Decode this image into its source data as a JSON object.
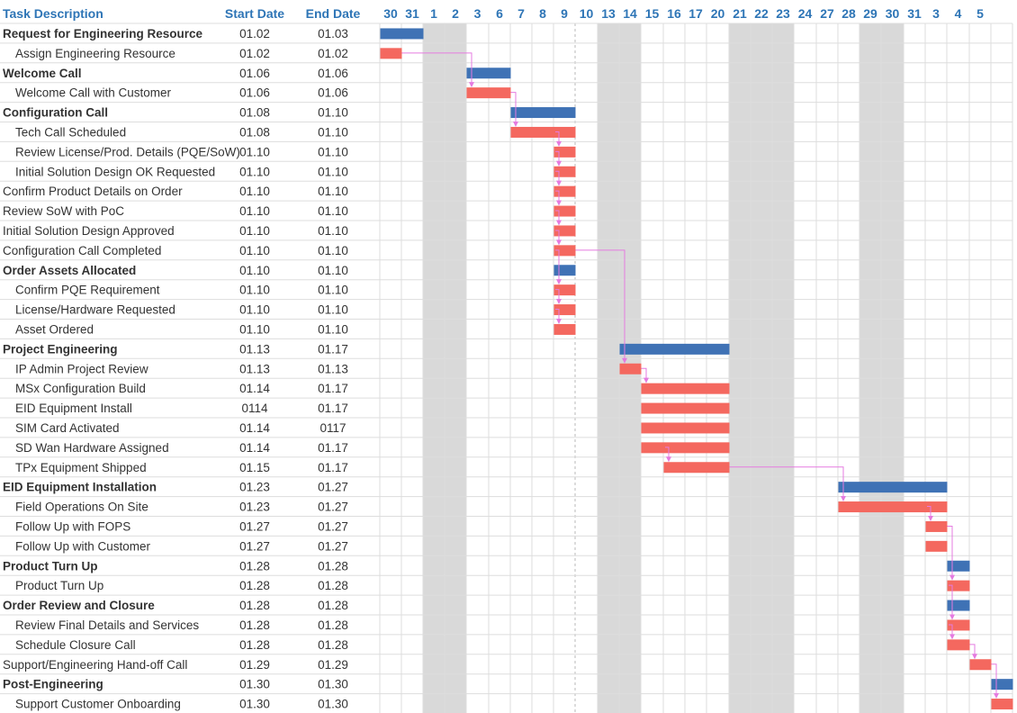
{
  "chart_data": {
    "type": "gantt",
    "columns": {
      "task": "Task Description",
      "start": "Start Date",
      "end": "End Date"
    },
    "colors": {
      "header_text": "#2e75b6",
      "summary_bar": "#3f72b5",
      "task_bar": "#f4685f",
      "weekend_shade": "#d9d9d9",
      "grid": "#dddddd",
      "dependency_line": "#e57be0"
    },
    "days": [
      {
        "label": "30",
        "weekend": false
      },
      {
        "label": "31",
        "weekend": false
      },
      {
        "label": "1",
        "weekend": true
      },
      {
        "label": "2",
        "weekend": true
      },
      {
        "label": "3",
        "weekend": false
      },
      {
        "label": "6",
        "weekend": false
      },
      {
        "label": "7",
        "weekend": false
      },
      {
        "label": "8",
        "weekend": false
      },
      {
        "label": "9",
        "weekend": false
      },
      {
        "label": "10",
        "weekend": false
      },
      {
        "label": "13",
        "weekend": true
      },
      {
        "label": "14",
        "weekend": true
      },
      {
        "label": "15",
        "weekend": false
      },
      {
        "label": "16",
        "weekend": false
      },
      {
        "label": "17",
        "weekend": false
      },
      {
        "label": "20",
        "weekend": false
      },
      {
        "label": "21",
        "weekend": true
      },
      {
        "label": "22",
        "weekend": true
      },
      {
        "label": "23",
        "weekend": true
      },
      {
        "label": "24",
        "weekend": false
      },
      {
        "label": "27",
        "weekend": false
      },
      {
        "label": "28",
        "weekend": false
      },
      {
        "label": "29",
        "weekend": true
      },
      {
        "label": "30",
        "weekend": true
      },
      {
        "label": "31",
        "weekend": false
      },
      {
        "label": "3",
        "weekend": false
      },
      {
        "label": "4",
        "weekend": false
      },
      {
        "label": "5",
        "weekend": false
      }
    ],
    "tasks": [
      {
        "name": "Request for Engineering Resource",
        "start": "01.02",
        "end": "01.03",
        "summary": true,
        "indent": false,
        "bar_start": 0,
        "bar_end": 2
      },
      {
        "name": "Assign Engineering Resource",
        "start": "01.02",
        "end": "01.02",
        "summary": false,
        "indent": true,
        "bar_start": 0,
        "bar_end": 1
      },
      {
        "name": "Welcome Call",
        "start": "01.06",
        "end": "01.06",
        "summary": true,
        "indent": false,
        "bar_start": 4,
        "bar_end": 6
      },
      {
        "name": "Welcome Call with Customer",
        "start": "01.06",
        "end": "01.06",
        "summary": false,
        "indent": true,
        "bar_start": 4,
        "bar_end": 6
      },
      {
        "name": "Configuration Call",
        "start": "01.08",
        "end": "01.10",
        "summary": true,
        "indent": false,
        "bar_start": 6,
        "bar_end": 9
      },
      {
        "name": "Tech Call Scheduled",
        "start": "01.08",
        "end": "01.10",
        "summary": false,
        "indent": true,
        "bar_start": 6,
        "bar_end": 9
      },
      {
        "name": "Review License/Prod. Details (PQE/SoW)",
        "start": "01.10",
        "end": "01.10",
        "summary": false,
        "indent": true,
        "bar_start": 8,
        "bar_end": 9
      },
      {
        "name": "Initial Solution Design OK Requested",
        "start": "01.10",
        "end": "01.10",
        "summary": false,
        "indent": true,
        "bar_start": 8,
        "bar_end": 9
      },
      {
        "name": "Confirm Product Details on Order",
        "start": "01.10",
        "end": "01.10",
        "summary": false,
        "indent": false,
        "bar_start": 8,
        "bar_end": 9
      },
      {
        "name": "Review SoW with PoC",
        "start": "01.10",
        "end": "01.10",
        "summary": false,
        "indent": false,
        "bar_start": 8,
        "bar_end": 9
      },
      {
        "name": "Initial Solution Design Approved",
        "start": "01.10",
        "end": "01.10",
        "summary": false,
        "indent": false,
        "bar_start": 8,
        "bar_end": 9
      },
      {
        "name": "Configuration Call Completed",
        "start": "01.10",
        "end": "01.10",
        "summary": false,
        "indent": false,
        "bar_start": 8,
        "bar_end": 9
      },
      {
        "name": "Order Assets Allocated",
        "start": "01.10",
        "end": "01.10",
        "summary": true,
        "indent": false,
        "bar_start": 8,
        "bar_end": 9
      },
      {
        "name": "Confirm PQE Requirement",
        "start": "01.10",
        "end": "01.10",
        "summary": false,
        "indent": true,
        "bar_start": 8,
        "bar_end": 9
      },
      {
        "name": "License/Hardware Requested",
        "start": "01.10",
        "end": "01.10",
        "summary": false,
        "indent": true,
        "bar_start": 8,
        "bar_end": 9
      },
      {
        "name": "Asset Ordered",
        "start": "01.10",
        "end": "01.10",
        "summary": false,
        "indent": true,
        "bar_start": 8,
        "bar_end": 9
      },
      {
        "name": "Project Engineering",
        "start": "01.13",
        "end": "01.17",
        "summary": true,
        "indent": false,
        "bar_start": 11,
        "bar_end": 16
      },
      {
        "name": "IP Admin Project Review",
        "start": "01.13",
        "end": "01.13",
        "summary": false,
        "indent": true,
        "bar_start": 11,
        "bar_end": 12
      },
      {
        "name": "MSx Configuration Build",
        "start": "01.14",
        "end": "01.17",
        "summary": false,
        "indent": true,
        "bar_start": 12,
        "bar_end": 16
      },
      {
        "name": "EID Equipment Install",
        "start": "0114",
        "end": "01.17",
        "summary": false,
        "indent": true,
        "bar_start": 12,
        "bar_end": 16
      },
      {
        "name": "SIM Card Activated",
        "start": "01.14",
        "end": "0117",
        "summary": false,
        "indent": true,
        "bar_start": 12,
        "bar_end": 16
      },
      {
        "name": "SD Wan Hardware Assigned",
        "start": "01.14",
        "end": "01.17",
        "summary": false,
        "indent": true,
        "bar_start": 12,
        "bar_end": 16
      },
      {
        "name": "TPx Equipment Shipped",
        "start": "01.15",
        "end": "01.17",
        "summary": false,
        "indent": true,
        "bar_start": 13,
        "bar_end": 16
      },
      {
        "name": "EID Equipment Installation",
        "start": "01.23",
        "end": "01.27",
        "summary": true,
        "indent": false,
        "bar_start": 21,
        "bar_end": 26
      },
      {
        "name": "Field Operations On Site",
        "start": "01.23",
        "end": "01.27",
        "summary": false,
        "indent": true,
        "bar_start": 21,
        "bar_end": 26
      },
      {
        "name": "Follow Up with FOPS",
        "start": "01.27",
        "end": "01.27",
        "summary": false,
        "indent": true,
        "bar_start": 25,
        "bar_end": 26
      },
      {
        "name": "Follow Up with Customer",
        "start": "01.27",
        "end": "01.27",
        "summary": false,
        "indent": true,
        "bar_start": 25,
        "bar_end": 26
      },
      {
        "name": "Product Turn Up",
        "start": "01.28",
        "end": "01.28",
        "summary": true,
        "indent": false,
        "bar_start": 26,
        "bar_end": 27
      },
      {
        "name": "Product Turn Up",
        "start": "01.28",
        "end": "01.28",
        "summary": false,
        "indent": true,
        "bar_start": 26,
        "bar_end": 27
      },
      {
        "name": "Order Review and Closure",
        "start": "01.28",
        "end": "01.28",
        "summary": true,
        "indent": false,
        "bar_start": 26,
        "bar_end": 27
      },
      {
        "name": "Review Final Details and Services",
        "start": "01.28",
        "end": "01.28",
        "summary": false,
        "indent": true,
        "bar_start": 26,
        "bar_end": 27
      },
      {
        "name": "Schedule Closure Call",
        "start": "01.28",
        "end": "01.28",
        "summary": false,
        "indent": true,
        "bar_start": 26,
        "bar_end": 27
      },
      {
        "name": "Support/Engineering Hand-off Call",
        "start": "01.29",
        "end": "01.29",
        "summary": false,
        "indent": false,
        "bar_start": 27,
        "bar_end": 28
      },
      {
        "name": "Post-Engineering",
        "start": "01.30",
        "end": "01.30",
        "summary": true,
        "indent": false,
        "bar_start": 28,
        "bar_end": 29
      },
      {
        "name": "Support Customer Onboarding",
        "start": "01.30",
        "end": "01.30",
        "summary": false,
        "indent": true,
        "bar_start": 28,
        "bar_end": 29
      }
    ],
    "dependencies": [
      [
        1,
        3
      ],
      [
        3,
        5
      ],
      [
        5,
        6
      ],
      [
        6,
        7
      ],
      [
        7,
        8
      ],
      [
        8,
        9
      ],
      [
        9,
        10
      ],
      [
        10,
        11
      ],
      [
        11,
        13
      ],
      [
        13,
        14
      ],
      [
        14,
        15
      ],
      [
        11,
        17
      ],
      [
        17,
        18
      ],
      [
        21,
        22
      ],
      [
        22,
        24
      ],
      [
        24,
        25
      ],
      [
        25,
        28
      ],
      [
        28,
        30
      ],
      [
        30,
        31
      ],
      [
        31,
        32
      ],
      [
        32,
        34
      ]
    ]
  }
}
